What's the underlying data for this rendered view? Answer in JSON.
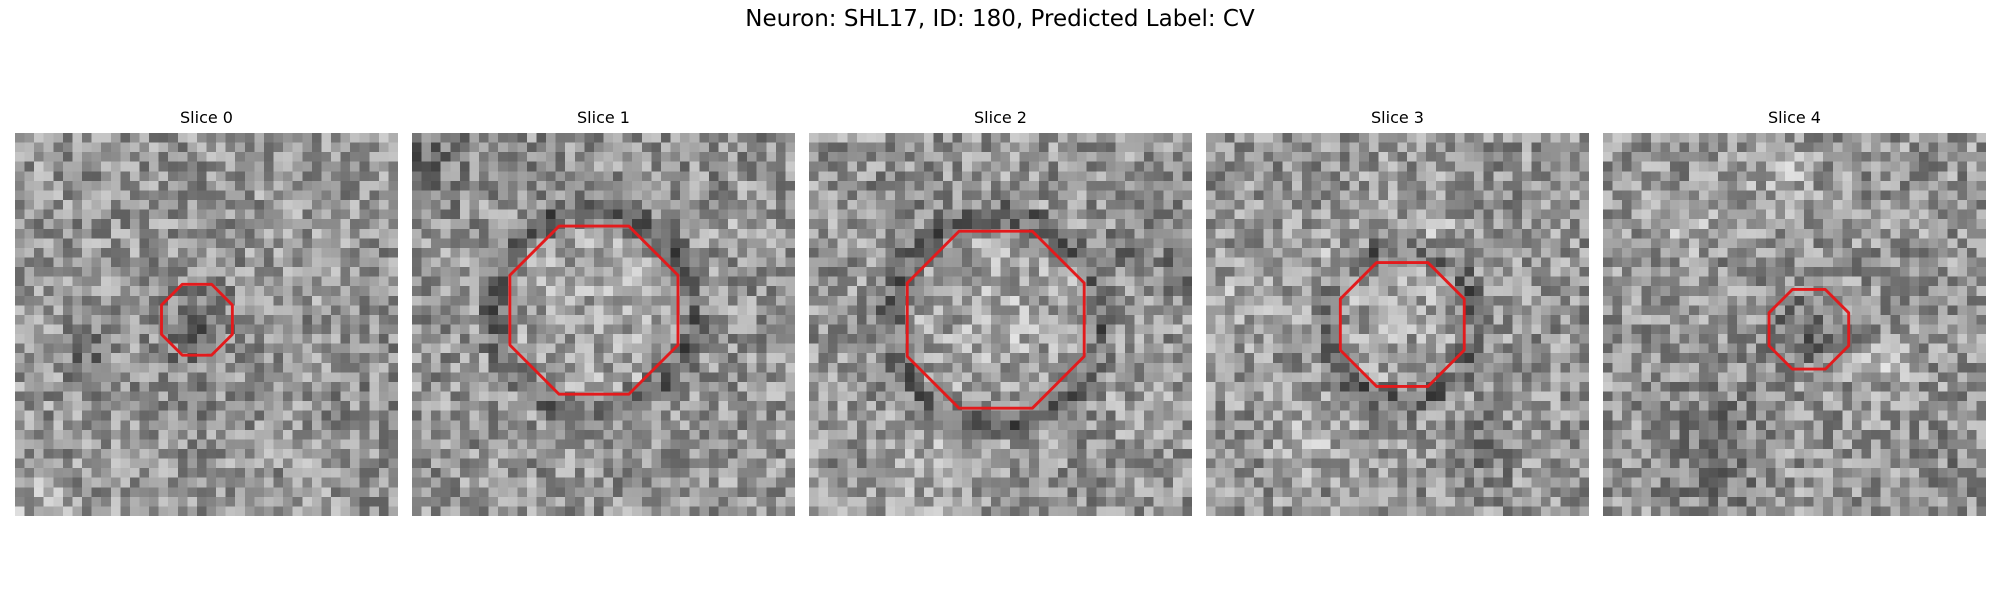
{
  "figure": {
    "title": "Neuron: SHL17, ID: 180, Predicted Label: CV"
  },
  "contour_color": "#e31a1c",
  "colormap": "gray",
  "panels": [
    {
      "title": "Slice 0",
      "seed": 11,
      "roi": {
        "cx": 19.0,
        "cy": 19.5,
        "r": 4.0
      }
    },
    {
      "title": "Slice 1",
      "seed": 23,
      "roi": {
        "cx": 19.0,
        "cy": 18.5,
        "r": 9.5
      }
    },
    {
      "title": "Slice 2",
      "seed": 37,
      "roi": {
        "cx": 19.5,
        "cy": 19.5,
        "r": 10.0
      }
    },
    {
      "title": "Slice 3",
      "seed": 41,
      "roi": {
        "cx": 20.5,
        "cy": 20.0,
        "r": 7.0
      }
    },
    {
      "title": "Slice 4",
      "seed": 53,
      "roi": {
        "cx": 21.5,
        "cy": 20.5,
        "r": 4.5
      }
    }
  ]
}
